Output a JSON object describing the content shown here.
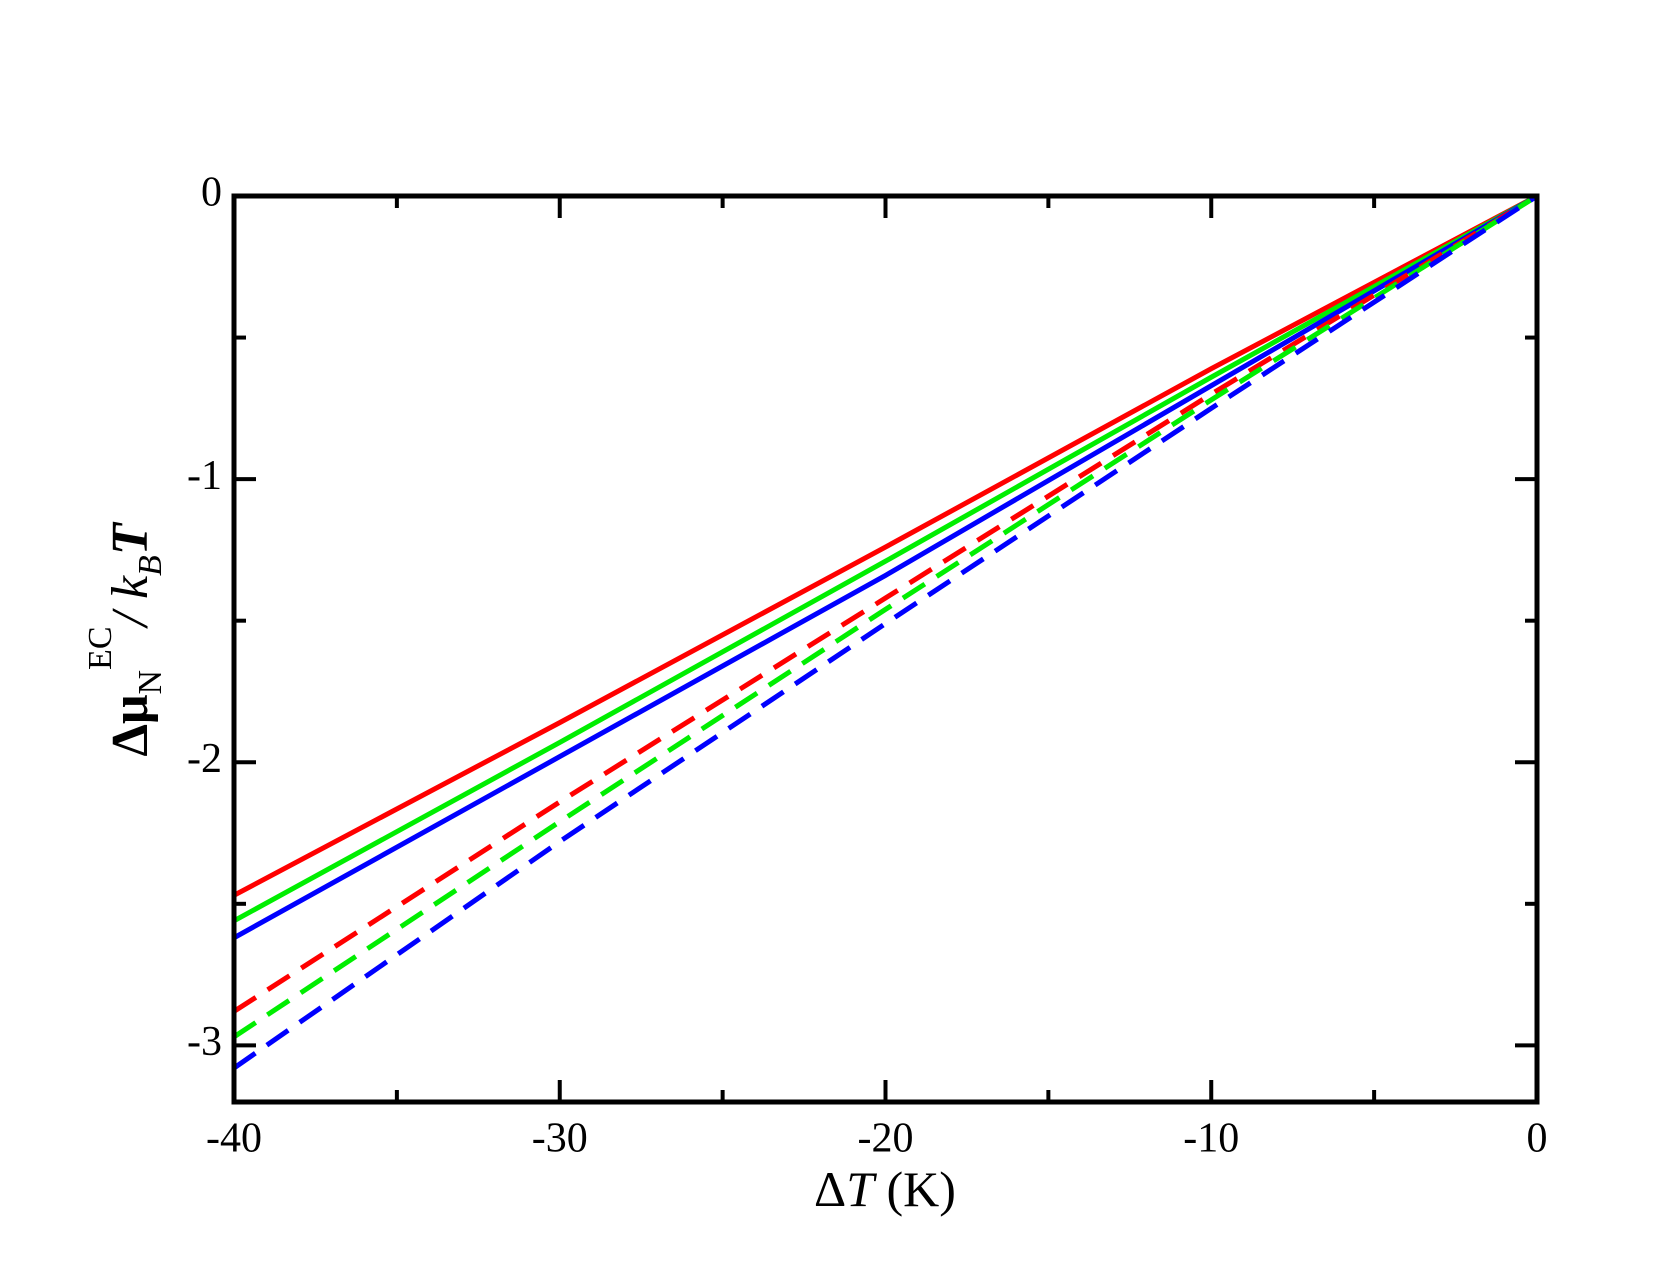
{
  "chart_data": {
    "type": "line",
    "x_label": [
      "Δ",
      "T",
      " (K)"
    ],
    "y_label": [
      "Δμ",
      "N",
      "EC",
      "/ k",
      "B",
      "T"
    ],
    "x": [
      -40,
      -30,
      -20,
      -10,
      0
    ],
    "series": [
      {
        "color": "#ff0000",
        "dashed": false,
        "values": [
          -2.47,
          -1.86,
          -1.24,
          -0.61,
          0
        ]
      },
      {
        "color": "#00ee00",
        "dashed": false,
        "values": [
          -2.56,
          -1.93,
          -1.29,
          -0.64,
          0
        ]
      },
      {
        "color": "#0000ff",
        "dashed": false,
        "values": [
          -2.62,
          -1.98,
          -1.34,
          -0.67,
          0
        ]
      },
      {
        "color": "#ff0000",
        "dashed": true,
        "values": [
          -2.88,
          -2.14,
          -1.42,
          -0.7,
          0
        ]
      },
      {
        "color": "#00ee00",
        "dashed": true,
        "values": [
          -2.97,
          -2.21,
          -1.46,
          -0.72,
          0
        ]
      },
      {
        "color": "#0000ff",
        "dashed": true,
        "values": [
          -3.08,
          -2.28,
          -1.51,
          -0.75,
          0
        ]
      }
    ],
    "xlim": [
      -40,
      0
    ],
    "xticks": [
      -40,
      -30,
      -20,
      -10,
      0
    ],
    "xminorticks": [
      -35,
      -25,
      -15,
      -5
    ],
    "ylim": [
      -3.2,
      0
    ],
    "yticks": [
      -3,
      -2,
      -1,
      0
    ],
    "yminorticks": [
      -2.5,
      -1.5,
      -0.5
    ],
    "grid": false
  }
}
